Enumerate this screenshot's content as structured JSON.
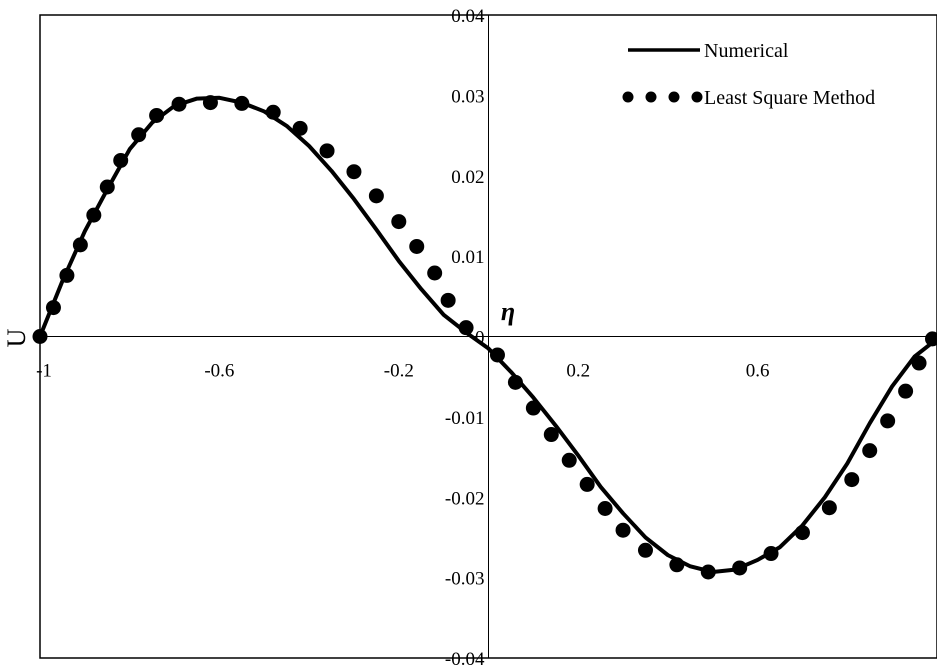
{
  "chart_data": {
    "type": "line",
    "title": "",
    "xlabel": "η",
    "ylabel": "U",
    "xlim": [
      -1,
      1
    ],
    "ylim": [
      -0.04,
      0.04
    ],
    "x_ticks": [
      "-1",
      "-0.6",
      "-0.2",
      "0.2",
      "0.6"
    ],
    "y_ticks": [
      "0.04",
      "0.03",
      "0.02",
      "0.01",
      "0",
      "-0.01",
      "-0.02",
      "-0.03",
      "-0.04"
    ],
    "x_tick_values": [
      -1,
      -0.6,
      -0.2,
      0.2,
      0.6
    ],
    "y_tick_values": [
      0.04,
      0.03,
      0.02,
      0.01,
      0,
      -0.01,
      -0.02,
      -0.03,
      -0.04
    ],
    "grid": false,
    "legend_position": "top-right",
    "series": [
      {
        "name": "Numerical",
        "style": "solid-line",
        "color": "#000000",
        "x": [
          -1,
          -0.95,
          -0.9,
          -0.85,
          -0.8,
          -0.75,
          -0.7,
          -0.65,
          -0.6,
          -0.55,
          -0.5,
          -0.45,
          -0.4,
          -0.35,
          -0.3,
          -0.25,
          -0.2,
          -0.15,
          -0.1,
          -0.05,
          0,
          0.05,
          0.1,
          0.15,
          0.2,
          0.25,
          0.3,
          0.35,
          0.4,
          0.45,
          0.5,
          0.55,
          0.6,
          0.65,
          0.7,
          0.75,
          0.8,
          0.85,
          0.9,
          0.95,
          1
        ],
        "y": [
          0,
          0.0069,
          0.0131,
          0.0183,
          0.0233,
          0.0266,
          0.0287,
          0.0296,
          0.0297,
          0.0291,
          0.028,
          0.0262,
          0.0237,
          0.0206,
          0.0171,
          0.0133,
          0.0094,
          0.0059,
          0.0027,
          0.0005,
          -0.0015,
          -0.0044,
          -0.0076,
          -0.0111,
          -0.0148,
          -0.0187,
          -0.022,
          -0.025,
          -0.0272,
          -0.0286,
          -0.0293,
          -0.029,
          -0.0278,
          -0.0262,
          -0.0235,
          -0.02,
          -0.0158,
          -0.0108,
          -0.0062,
          -0.0025,
          -0.0003
        ]
      },
      {
        "name": "Least Square Method",
        "style": "markers",
        "color": "#000000",
        "x": [
          -1,
          -0.97,
          -0.94,
          -0.91,
          -0.88,
          -0.85,
          -0.82,
          -0.78,
          -0.74,
          -0.69,
          -0.62,
          -0.55,
          -0.48,
          -0.42,
          -0.36,
          -0.3,
          -0.25,
          -0.2,
          -0.16,
          -0.12,
          -0.09,
          -0.05,
          0.02,
          0.06,
          0.1,
          0.14,
          0.18,
          0.22,
          0.26,
          0.3,
          0.35,
          0.42,
          0.49,
          0.56,
          0.63,
          0.7,
          0.76,
          0.81,
          0.85,
          0.89,
          0.93,
          0.96,
          0.99
        ],
        "y": [
          0,
          0.0036,
          0.0076,
          0.0114,
          0.0151,
          0.0186,
          0.0219,
          0.0251,
          0.0275,
          0.0289,
          0.0291,
          0.029,
          0.0279,
          0.0259,
          0.0231,
          0.0205,
          0.0175,
          0.0143,
          0.0112,
          0.0079,
          0.0045,
          0.0011,
          -0.0023,
          -0.0057,
          -0.0089,
          -0.0122,
          -0.0154,
          -0.0184,
          -0.0214,
          -0.0241,
          -0.0266,
          -0.0284,
          -0.0293,
          -0.0288,
          -0.027,
          -0.0244,
          -0.0213,
          -0.0178,
          -0.0142,
          -0.0105,
          -0.0068,
          -0.0033,
          -0.0003
        ]
      }
    ]
  }
}
